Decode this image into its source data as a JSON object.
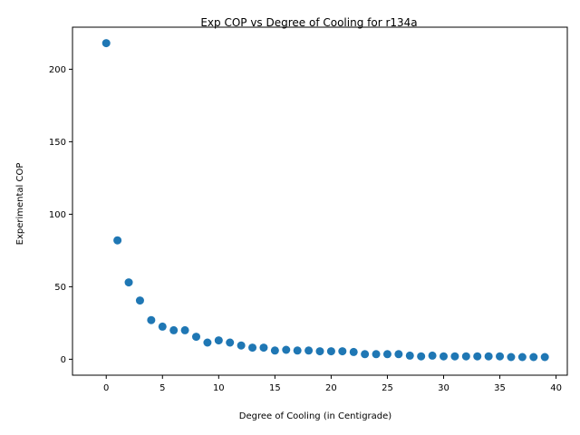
{
  "chart_data": {
    "type": "scatter",
    "title": "Exp COP vs Degree of Cooling for r134a",
    "xlabel": "Degree of Cooling (in Centigrade)",
    "ylabel": "Experimental COP",
    "xlim": [
      -3,
      41
    ],
    "ylim": [
      -11,
      229
    ],
    "xticks": [
      0,
      5,
      10,
      15,
      20,
      25,
      30,
      35,
      40
    ],
    "yticks": [
      0,
      50,
      100,
      150,
      200
    ],
    "grid": false,
    "legend": "none",
    "marker_color": "#1f77b4",
    "series": [
      {
        "x": [
          0,
          1,
          2,
          3,
          4,
          5,
          6,
          7,
          8,
          9,
          10,
          11,
          12,
          13,
          14,
          15,
          16,
          17,
          18,
          19,
          20,
          21,
          22,
          23,
          24,
          25,
          26,
          27,
          28,
          29,
          30,
          31,
          32,
          33,
          34,
          35,
          36,
          37,
          38,
          39
        ],
        "y": [
          218,
          82,
          53,
          40.5,
          27,
          22.5,
          20,
          20,
          15.5,
          11.5,
          13,
          11.5,
          9.5,
          8,
          8,
          6,
          6.5,
          6,
          6,
          5.5,
          5.5,
          5.5,
          5,
          3.5,
          3.5,
          3.5,
          3.5,
          2.5,
          2,
          2.5,
          2,
          2,
          2,
          2,
          2,
          2,
          1.5,
          1.5,
          1.5,
          1.5
        ]
      }
    ]
  }
}
